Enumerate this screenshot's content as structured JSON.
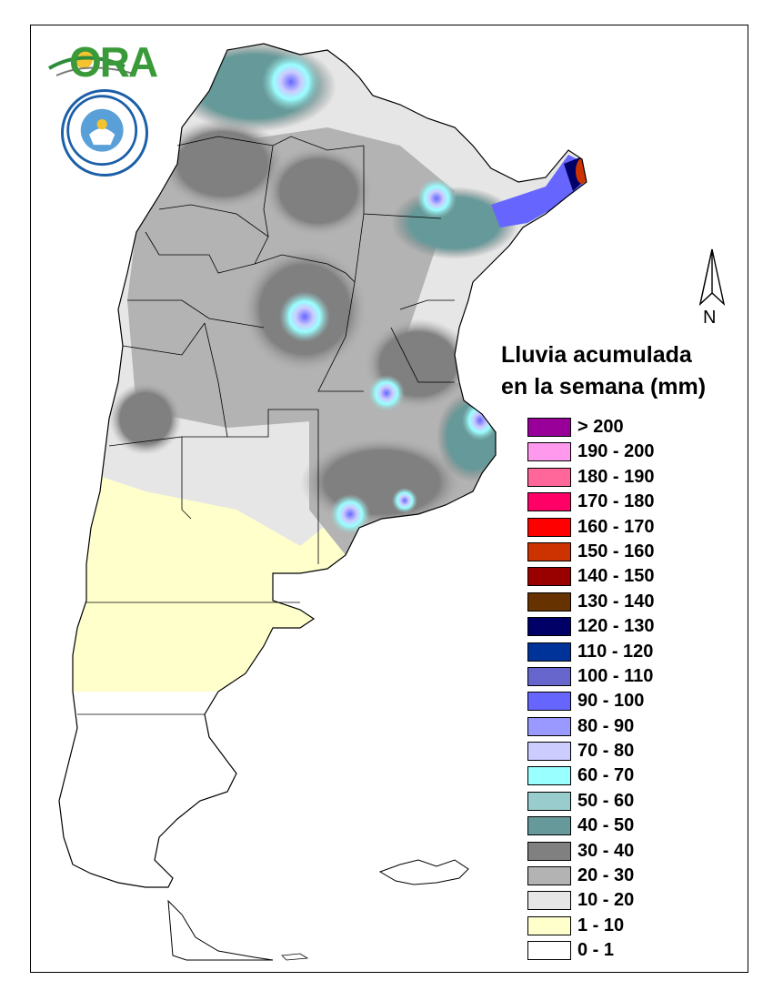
{
  "logo_text": "ORA",
  "north_label": "N",
  "legend": {
    "title_line1": "Lluvia acumulada",
    "title_line2": "en la semana (mm)",
    "items": [
      {
        "label": "> 200",
        "color": "#990099"
      },
      {
        "label": "190 - 200",
        "color": "#ff99ee"
      },
      {
        "label": "180 - 190",
        "color": "#ff6699"
      },
      {
        "label": "170 - 180",
        "color": "#ff0066"
      },
      {
        "label": "160 - 170",
        "color": "#ff0000"
      },
      {
        "label": "150 - 160",
        "color": "#cc3300"
      },
      {
        "label": "140 - 150",
        "color": "#990000"
      },
      {
        "label": "130 - 140",
        "color": "#663300"
      },
      {
        "label": "120 - 130",
        "color": "#000066"
      },
      {
        "label": "110 - 120",
        "color": "#003399"
      },
      {
        "label": "100 - 110",
        "color": "#6666cc"
      },
      {
        "label": "90 - 100",
        "color": "#6666ff"
      },
      {
        "label": "80 - 90",
        "color": "#9999ff"
      },
      {
        "label": "70 - 80",
        "color": "#ccccff"
      },
      {
        "label": "60 - 70",
        "color": "#99ffff"
      },
      {
        "label": "50 - 60",
        "color": "#99cccc"
      },
      {
        "label": "40 - 50",
        "color": "#669999"
      },
      {
        "label": "30 - 40",
        "color": "#808080"
      },
      {
        "label": "20 - 30",
        "color": "#b3b3b3"
      },
      {
        "label": "10 - 20",
        "color": "#e6e6e6"
      },
      {
        "label": "1 - 10",
        "color": "#ffffcc"
      },
      {
        "label": "0 - 1",
        "color": "#ffffff"
      }
    ]
  }
}
